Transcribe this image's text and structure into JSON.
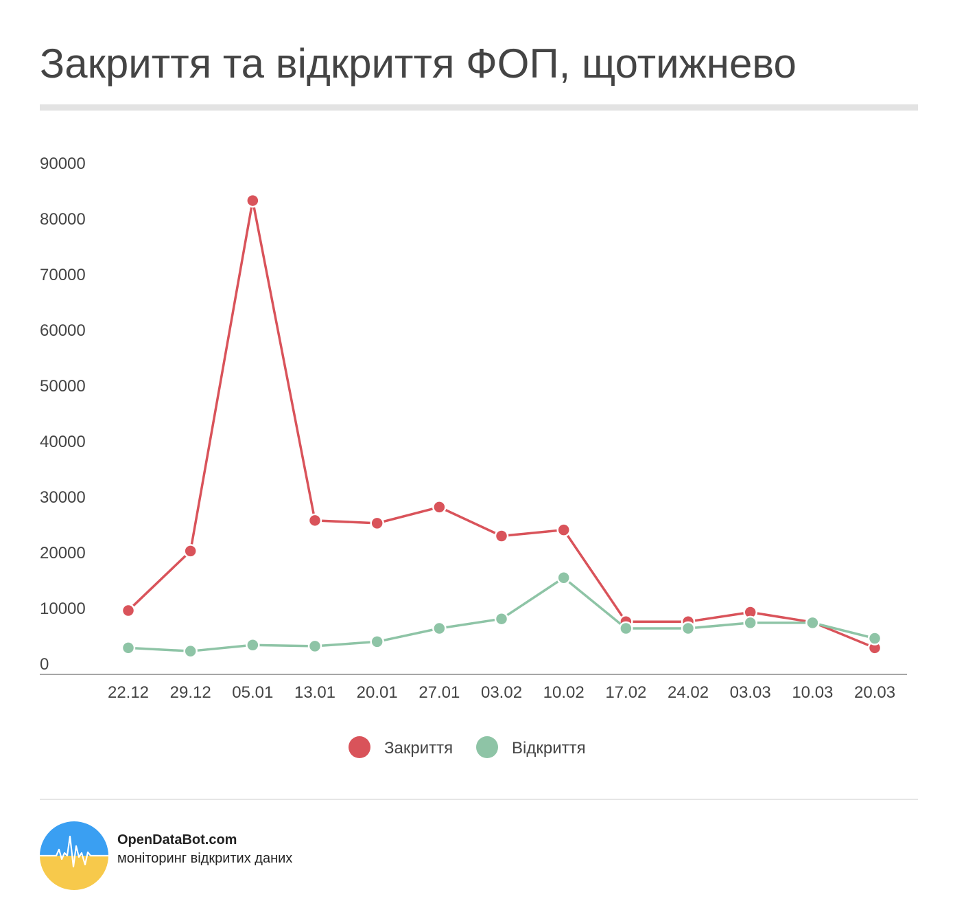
{
  "title": "Закриття та відкриття ФОП, щотижнево",
  "colors": {
    "closings": "#d9535a",
    "openings": "#8ec4a6",
    "text": "#444444",
    "axis": "#888888",
    "rule": "#e3e3e3",
    "logo_top": "#3a9ff2",
    "logo_bottom": "#f7c94b"
  },
  "chart_data": {
    "type": "line",
    "categories": [
      "22.12",
      "29.12",
      "05.01",
      "13.01",
      "20.01",
      "27.01",
      "03.02",
      "10.02",
      "17.02",
      "24.02",
      "03.03",
      "10.03",
      "20.03"
    ],
    "y_ticks": [
      "0",
      "10000",
      "20000",
      "30000",
      "40000",
      "50000",
      "60000",
      "70000",
      "80000",
      "90000"
    ],
    "ylim": [
      0,
      90000
    ],
    "grid": false,
    "legend_position": "bottom",
    "series": [
      {
        "name": "Закриття",
        "color": "#d9535a",
        "values": [
          9500,
          20200,
          83200,
          25700,
          25200,
          28100,
          22900,
          24000,
          7500,
          7500,
          9200,
          7400,
          2800
        ]
      },
      {
        "name": "Відкриття",
        "color": "#8ec4a6",
        "values": [
          2800,
          2200,
          3300,
          3100,
          3900,
          6300,
          8000,
          15400,
          6300,
          6300,
          7300,
          7300,
          4500
        ]
      }
    ]
  },
  "footer": {
    "brand": "OpenDataBot.com",
    "tagline": "моніторинг відкритих даних",
    "logo_icon": "pulse-line-icon"
  }
}
